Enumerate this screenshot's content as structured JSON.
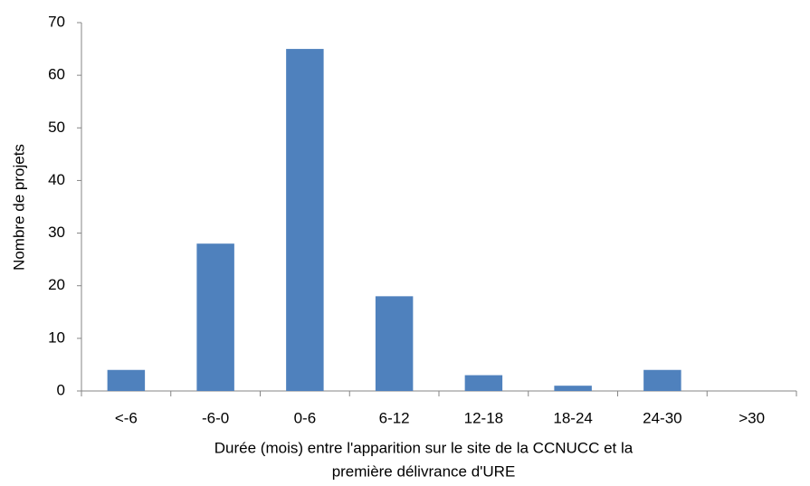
{
  "chart_data": {
    "type": "bar",
    "categories": [
      "<-6",
      "-6-0",
      "0-6",
      "6-12",
      "12-18",
      "18-24",
      "24-30",
      ">30"
    ],
    "values": [
      4,
      28,
      65,
      18,
      3,
      1,
      4,
      0
    ],
    "color": "#4f81bd",
    "ylabel": "Nombre de projets",
    "xlabel": [
      "Durée (mois) entre l'apparition sur le site de la CCNUCC et la",
      "première délivrance d'URE"
    ],
    "ylim": [
      0,
      70
    ],
    "yticks": [
      0,
      10,
      20,
      30,
      40,
      50,
      60,
      70
    ],
    "grid": false
  }
}
